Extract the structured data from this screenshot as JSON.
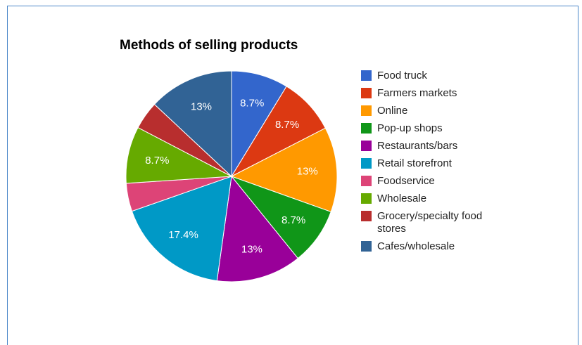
{
  "chart_data": {
    "type": "pie",
    "title": "Methods of selling products",
    "legend_position": "right",
    "start_angle_deg": 0,
    "slices": [
      {
        "label": "Food truck",
        "value": 8.7,
        "display": "8.7%",
        "color": "#3366cc"
      },
      {
        "label": "Farmers markets",
        "value": 8.7,
        "display": "8.7%",
        "color": "#dc3912"
      },
      {
        "label": "Online",
        "value": 13.0,
        "display": "13%",
        "color": "#ff9900"
      },
      {
        "label": "Pop-up shops",
        "value": 8.7,
        "display": "8.7%",
        "color": "#109618"
      },
      {
        "label": "Restaurants/bars",
        "value": 13.0,
        "display": "13%",
        "color": "#990099"
      },
      {
        "label": "Retail storefront",
        "value": 17.4,
        "display": "17.4%",
        "color": "#0099c6"
      },
      {
        "label": "Foodservice",
        "value": 4.3,
        "display": "",
        "color": "#dd4477"
      },
      {
        "label": "Wholesale",
        "value": 8.7,
        "display": "8.7%",
        "color": "#66aa00"
      },
      {
        "label": "Grocery/specialty food stores",
        "value": 4.3,
        "display": "",
        "color": "#b82e2e"
      },
      {
        "label": "Cafes/wholesale",
        "value": 13.0,
        "display": "13%",
        "color": "#316395"
      }
    ]
  }
}
